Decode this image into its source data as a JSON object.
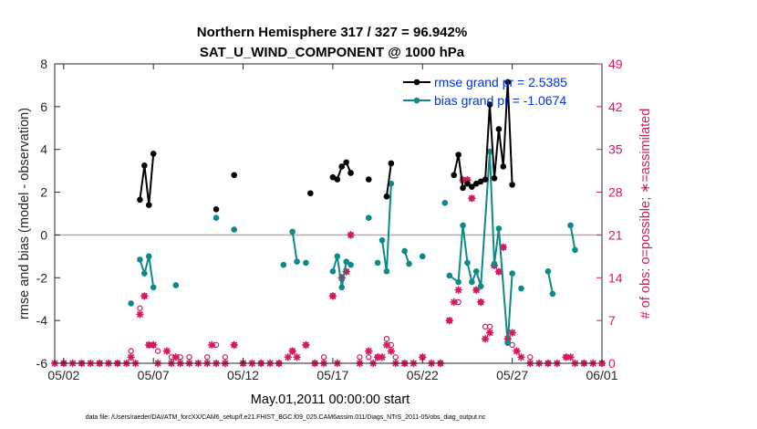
{
  "chart_data": {
    "type": "line",
    "title": "Northern Hemisphere 317 / 327 = 96.942%",
    "subtitle": "SAT_U_WIND_COMPONENT @ 1000 hPa",
    "xlabel": "May.01,2011 00:00:00 start",
    "ylabel_left": "rmse and bias (model - observation)",
    "ylabel_right": "# of obs: o=possible; ∗=assimilated",
    "footer": "data file: /Users/raeder/DAI/ATM_forcXX/CAM6_setup/f.e21.FHIST_BGC.f09_025.CAM6assim.011/Diags_NTrS_2011-05/obs_diag_output.nc",
    "x_unit": "days since May.01,2011 00:00:00",
    "xlim": [
      0.5,
      31
    ],
    "ylim_left": [
      -6,
      8
    ],
    "ylim_right": [
      0,
      49
    ],
    "x_ticks": [
      1,
      6,
      11,
      16,
      21,
      26,
      31
    ],
    "x_tick_labels": [
      "05/02",
      "05/07",
      "05/12",
      "05/17",
      "05/22",
      "05/27",
      "06/01"
    ],
    "y_ticks_left": [
      -6,
      -4,
      -2,
      0,
      2,
      4,
      6,
      8
    ],
    "y_tick_labels_left": [
      "-6",
      "-4",
      "-2",
      "0",
      "2",
      "4",
      "6",
      "8"
    ],
    "y_ticks_right": [
      0,
      7,
      14,
      21,
      28,
      35,
      42,
      49
    ],
    "y_tick_labels_right": [
      "0",
      "7",
      "14",
      "21",
      "28",
      "35",
      "42",
      "49"
    ],
    "zero_line": 0,
    "legend_position": "top-right",
    "colors": {
      "rmse": "#000000",
      "bias": "#0b8a87",
      "obs": "#d6185f",
      "zero": "#c0a0a0",
      "legend_text": "#0033dd"
    },
    "series": [
      {
        "name": "rmse grand pr = 2.5385",
        "color": "#000000",
        "segments": [
          [
            [
              5.25,
              1.65
            ],
            [
              5.5,
              3.25
            ],
            [
              5.75,
              1.4
            ],
            [
              6.0,
              3.8
            ]
          ],
          [
            [
              9.5,
              1.2
            ]
          ],
          [
            [
              10.5,
              2.8
            ]
          ],
          [
            [
              14.75,
              1.95
            ]
          ],
          [
            [
              16.0,
              2.7
            ],
            [
              16.25,
              2.6
            ],
            [
              16.5,
              3.2
            ],
            [
              16.75,
              3.4
            ],
            [
              17.0,
              2.9
            ]
          ],
          [
            [
              18.0,
              2.6
            ]
          ],
          [
            [
              19.0,
              1.8
            ],
            [
              19.25,
              3.35
            ]
          ],
          [
            [
              22.75,
              2.8
            ],
            [
              23.0,
              3.75
            ],
            [
              23.25,
              2.2
            ],
            [
              23.5,
              2.4
            ],
            [
              23.75,
              2.25
            ],
            [
              24.0,
              2.4
            ],
            [
              24.25,
              2.5
            ],
            [
              24.5,
              2.6
            ],
            [
              24.75,
              6.1
            ],
            [
              25.0,
              2.65
            ],
            [
              25.25,
              4.95
            ],
            [
              25.5,
              3.2
            ],
            [
              25.75,
              7.15
            ],
            [
              26.0,
              2.35
            ]
          ]
        ]
      },
      {
        "name": "bias grand pr = -1.0674",
        "color": "#0b8a87",
        "segments": [
          [
            [
              4.75,
              -3.2
            ]
          ],
          [
            [
              5.25,
              -1.15
            ],
            [
              5.5,
              -1.8
            ],
            [
              5.75,
              -1.0
            ],
            [
              6.0,
              -2.45
            ]
          ],
          [
            [
              7.25,
              -2.35
            ]
          ],
          [
            [
              9.5,
              0.8
            ]
          ],
          [
            [
              10.5,
              0.25
            ]
          ],
          [
            [
              13.25,
              -1.4
            ]
          ],
          [
            [
              13.75,
              0.15
            ],
            [
              14.0,
              -1.25
            ]
          ],
          [
            [
              14.5,
              -1.3
            ]
          ],
          [
            [
              16.0,
              -1.7
            ],
            [
              16.25,
              -1.0
            ],
            [
              16.5,
              -2.45
            ],
            [
              16.75,
              -1.25
            ]
          ],
          [
            [
              17.0,
              -1.4
            ]
          ],
          [
            [
              18.0,
              0.8
            ]
          ],
          [
            [
              18.5,
              -1.3
            ]
          ],
          [
            [
              18.75,
              -0.25
            ],
            [
              19.0,
              -1.7
            ],
            [
              19.25,
              2.4
            ]
          ],
          [
            [
              20.0,
              -0.75
            ],
            [
              20.25,
              -1.35
            ]
          ],
          [
            [
              21.0,
              -1.0
            ]
          ],
          [
            [
              22.25,
              1.5
            ]
          ],
          [
            [
              22.5,
              -1.9
            ],
            [
              23.0,
              -2.2
            ],
            [
              23.25,
              0.45
            ],
            [
              23.5,
              -1.3
            ],
            [
              23.75,
              -2.2
            ],
            [
              24.0,
              -1.7
            ],
            [
              24.25,
              -2.4
            ],
            [
              24.75,
              3.9
            ],
            [
              25.0,
              -1.35
            ],
            [
              25.25,
              0.3
            ],
            [
              25.75,
              -5.05
            ],
            [
              26.0,
              -1.8
            ]
          ],
          [
            [
              26.5,
              -2.5
            ]
          ],
          [
            [
              28.0,
              -1.7
            ],
            [
              28.25,
              -2.75
            ]
          ],
          [
            [
              29.25,
              0.45
            ],
            [
              29.5,
              -0.7
            ]
          ]
        ]
      }
    ],
    "obs_possible": [
      [
        1.0,
        0
      ],
      [
        2.0,
        0
      ],
      [
        3.0,
        0
      ],
      [
        4.0,
        0
      ],
      [
        4.75,
        2
      ],
      [
        5.25,
        9
      ],
      [
        5.5,
        11
      ],
      [
        5.75,
        3
      ],
      [
        6.0,
        3
      ],
      [
        6.25,
        2
      ],
      [
        7.0,
        1
      ],
      [
        7.5,
        1
      ],
      [
        8.0,
        1
      ],
      [
        9.0,
        1
      ],
      [
        9.5,
        3
      ],
      [
        10.0,
        1
      ],
      [
        10.5,
        3
      ],
      [
        11.0,
        0
      ],
      [
        12.0,
        0
      ],
      [
        13.0,
        0
      ],
      [
        13.75,
        2
      ],
      [
        14.5,
        3
      ],
      [
        15.0,
        0
      ],
      [
        15.5,
        1
      ],
      [
        16.0,
        11
      ],
      [
        16.5,
        14
      ],
      [
        16.75,
        15
      ],
      [
        17.0,
        21
      ],
      [
        17.5,
        1
      ],
      [
        18.0,
        1
      ],
      [
        18.5,
        1
      ],
      [
        19.0,
        4
      ],
      [
        19.25,
        3
      ],
      [
        19.5,
        1
      ],
      [
        20.0,
        0
      ],
      [
        21.0,
        1
      ],
      [
        22.0,
        0
      ],
      [
        22.5,
        7
      ],
      [
        23.0,
        10
      ],
      [
        23.25,
        30
      ],
      [
        23.5,
        30
      ],
      [
        23.75,
        27
      ],
      [
        24.0,
        12
      ],
      [
        24.25,
        10
      ],
      [
        24.5,
        6
      ],
      [
        24.75,
        6
      ],
      [
        25.0,
        16
      ],
      [
        25.25,
        15
      ],
      [
        25.5,
        19
      ],
      [
        25.75,
        4
      ],
      [
        26.0,
        3
      ],
      [
        27.0,
        1
      ],
      [
        28.0,
        0
      ],
      [
        29.0,
        1
      ],
      [
        30.0,
        0
      ],
      [
        31.0,
        0
      ]
    ],
    "obs_assimilated": [
      [
        0.5,
        0
      ],
      [
        1.0,
        0
      ],
      [
        1.5,
        0
      ],
      [
        2.0,
        0
      ],
      [
        2.5,
        0
      ],
      [
        3.0,
        0
      ],
      [
        3.5,
        0
      ],
      [
        4.0,
        0
      ],
      [
        4.5,
        0
      ],
      [
        4.75,
        1
      ],
      [
        5.0,
        0
      ],
      [
        5.25,
        8
      ],
      [
        5.5,
        11
      ],
      [
        5.75,
        3
      ],
      [
        6.0,
        3
      ],
      [
        6.25,
        0
      ],
      [
        6.75,
        2
      ],
      [
        7.0,
        0
      ],
      [
        7.25,
        1
      ],
      [
        7.5,
        0
      ],
      [
        8.0,
        0
      ],
      [
        8.5,
        0
      ],
      [
        9.0,
        0
      ],
      [
        9.25,
        3
      ],
      [
        9.5,
        0
      ],
      [
        10.0,
        0
      ],
      [
        10.5,
        3
      ],
      [
        11.0,
        0
      ],
      [
        11.5,
        0
      ],
      [
        12.0,
        0
      ],
      [
        12.5,
        0
      ],
      [
        13.0,
        0
      ],
      [
        13.5,
        1
      ],
      [
        13.75,
        2
      ],
      [
        14.0,
        1
      ],
      [
        14.5,
        3
      ],
      [
        15.0,
        0
      ],
      [
        15.5,
        0
      ],
      [
        16.0,
        11
      ],
      [
        16.25,
        0
      ],
      [
        16.5,
        14
      ],
      [
        16.75,
        15
      ],
      [
        17.0,
        21
      ],
      [
        17.5,
        0
      ],
      [
        18.0,
        2
      ],
      [
        18.25,
        0
      ],
      [
        18.5,
        1
      ],
      [
        18.75,
        1
      ],
      [
        19.0,
        3
      ],
      [
        19.25,
        2
      ],
      [
        19.5,
        0
      ],
      [
        20.0,
        0
      ],
      [
        20.5,
        0
      ],
      [
        21.0,
        1
      ],
      [
        21.5,
        0
      ],
      [
        22.0,
        0
      ],
      [
        22.5,
        7
      ],
      [
        22.75,
        10
      ],
      [
        23.0,
        12
      ],
      [
        23.25,
        30
      ],
      [
        23.5,
        30
      ],
      [
        23.75,
        27
      ],
      [
        24.0,
        12
      ],
      [
        24.25,
        10
      ],
      [
        24.5,
        4
      ],
      [
        24.75,
        5
      ],
      [
        25.0,
        16
      ],
      [
        25.25,
        15
      ],
      [
        25.5,
        19
      ],
      [
        25.75,
        4
      ],
      [
        26.0,
        5
      ],
      [
        26.25,
        2
      ],
      [
        26.5,
        1
      ],
      [
        27.0,
        0
      ],
      [
        27.5,
        0
      ],
      [
        28.0,
        0
      ],
      [
        28.5,
        0
      ],
      [
        29.0,
        1
      ],
      [
        29.25,
        1
      ],
      [
        29.5,
        0
      ],
      [
        30.0,
        0
      ],
      [
        30.5,
        0
      ],
      [
        31.0,
        0
      ]
    ]
  }
}
